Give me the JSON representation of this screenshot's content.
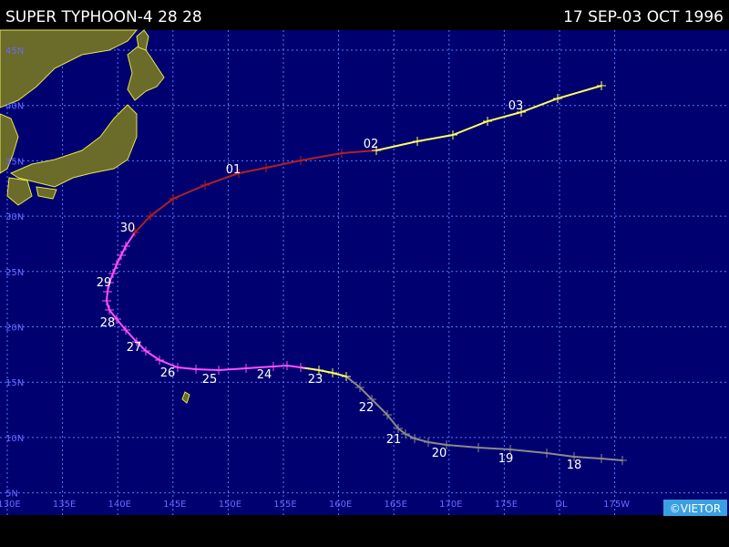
{
  "header": {
    "title": "SUPER TYPHOON-4 28 28",
    "dates": "17 SEP-03 OCT 1996"
  },
  "lat_labels": [
    "45N",
    "40N",
    "35N",
    "30N",
    "25N",
    "20N",
    "15N",
    "10N",
    "5N"
  ],
  "lon_labels": [
    "130E",
    "135E",
    "140E",
    "145E",
    "150E",
    "155E",
    "160E",
    "165E",
    "170E",
    "175E",
    "DL",
    "175W"
  ],
  "day_labels": [
    "18",
    "19",
    "20",
    "21",
    "22",
    "23",
    "24",
    "25",
    "26",
    "27",
    "28",
    "29",
    "30",
    "01",
    "02",
    "03"
  ],
  "credit": "©VIETOR"
}
